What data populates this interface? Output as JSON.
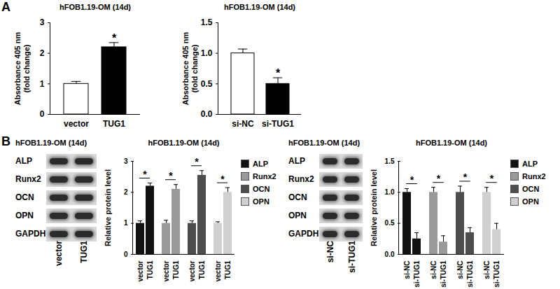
{
  "panel_labels": [
    "A",
    "B"
  ],
  "chart_data": [
    {
      "type": "bar",
      "title": "hFOB1.19-OM (14d)",
      "ylabel": "Absorbance 405 nm\n(fold change)",
      "categories": [
        "vector",
        "TUG1"
      ],
      "values": [
        1.0,
        2.2
      ],
      "errors": [
        0.08,
        0.15
      ],
      "colors": [
        "#ffffff",
        "#000000"
      ],
      "annotations": [
        null,
        "*"
      ],
      "ylim": [
        0,
        3
      ],
      "yticks": [
        0,
        1,
        2,
        3
      ]
    },
    {
      "type": "bar",
      "title": "hFOB1.19-OM (14d)",
      "ylabel": "Absorbance 405 nm\n(fold change)",
      "categories": [
        "si-NC",
        "si-TUG1"
      ],
      "values": [
        1.0,
        0.5
      ],
      "errors": [
        0.07,
        0.1
      ],
      "colors": [
        "#ffffff",
        "#000000"
      ],
      "annotations": [
        null,
        "*"
      ],
      "ylim": [
        0,
        1.5
      ],
      "yticks": [
        {
          "value": 0,
          "label": "0.0"
        },
        {
          "value": 0.5,
          "label": "0.5"
        },
        {
          "value": 1,
          "label": "1.0"
        },
        {
          "value": 1.5,
          "label": "1.5"
        }
      ]
    },
    {
      "type": "bar",
      "title": "hFOB1.19-OM (14d)",
      "ylabel": "Relative protein level",
      "categories": [
        "vector",
        "TUG1"
      ],
      "legend": "right",
      "series": [
        {
          "name": "ALP",
          "color": "#111111",
          "values": [
            1.0,
            2.2
          ],
          "errors": [
            0.08,
            0.1
          ],
          "annotation": "*"
        },
        {
          "name": "Runx2",
          "color": "#9a9a9a",
          "values": [
            1.0,
            2.1
          ],
          "errors": [
            0.1,
            0.15
          ],
          "annotation": "*"
        },
        {
          "name": "OCN",
          "color": "#4d4d4d",
          "values": [
            1.0,
            2.55
          ],
          "errors": [
            0.08,
            0.15
          ],
          "annotation": "*"
        },
        {
          "name": "OPN",
          "color": "#d0d0d0",
          "values": [
            1.0,
            2.0
          ],
          "errors": [
            0.05,
            0.15
          ],
          "annotation": "*"
        }
      ],
      "ylim": [
        0,
        3
      ],
      "yticks": [
        0,
        1,
        2,
        3
      ]
    },
    {
      "type": "bar",
      "title": "hFOB1.19-OM (14d)",
      "ylabel": "Relative protein level",
      "categories": [
        "si-NC",
        "si-TUG1"
      ],
      "legend": "right",
      "series": [
        {
          "name": "ALP",
          "color": "#111111",
          "values": [
            1.0,
            0.25
          ],
          "errors": [
            0.06,
            0.1
          ],
          "annotation": "*"
        },
        {
          "name": "Runx2",
          "color": "#9a9a9a",
          "values": [
            1.0,
            0.2
          ],
          "errors": [
            0.08,
            0.1
          ],
          "annotation": "*"
        },
        {
          "name": "OCN",
          "color": "#4d4d4d",
          "values": [
            1.0,
            0.35
          ],
          "errors": [
            0.1,
            0.08
          ],
          "annotation": "*"
        },
        {
          "name": "OPN",
          "color": "#d0d0d0",
          "values": [
            1.0,
            0.4
          ],
          "errors": [
            0.08,
            0.1
          ],
          "annotation": "*"
        }
      ],
      "ylim": [
        0,
        1.5
      ],
      "yticks": [
        {
          "value": 0,
          "label": "0.0"
        },
        {
          "value": 0.5,
          "label": "0.5"
        },
        {
          "value": 1,
          "label": "1.0"
        },
        {
          "value": 1.5,
          "label": "1.5"
        }
      ]
    }
  ],
  "blots": [
    {
      "title": "hFOB1.19-OM (14d)",
      "rows": [
        "ALP",
        "Runx2",
        "OCN",
        "OPN",
        "GAPDH"
      ],
      "lanes": [
        "vector",
        "TUG1"
      ]
    },
    {
      "title": "hFOB1.19-OM (14d)",
      "rows": [
        "ALP",
        "Runx2",
        "OCN",
        "OPN",
        "GAPDH"
      ],
      "lanes": [
        "si-NC",
        "si-TUG1"
      ]
    }
  ]
}
